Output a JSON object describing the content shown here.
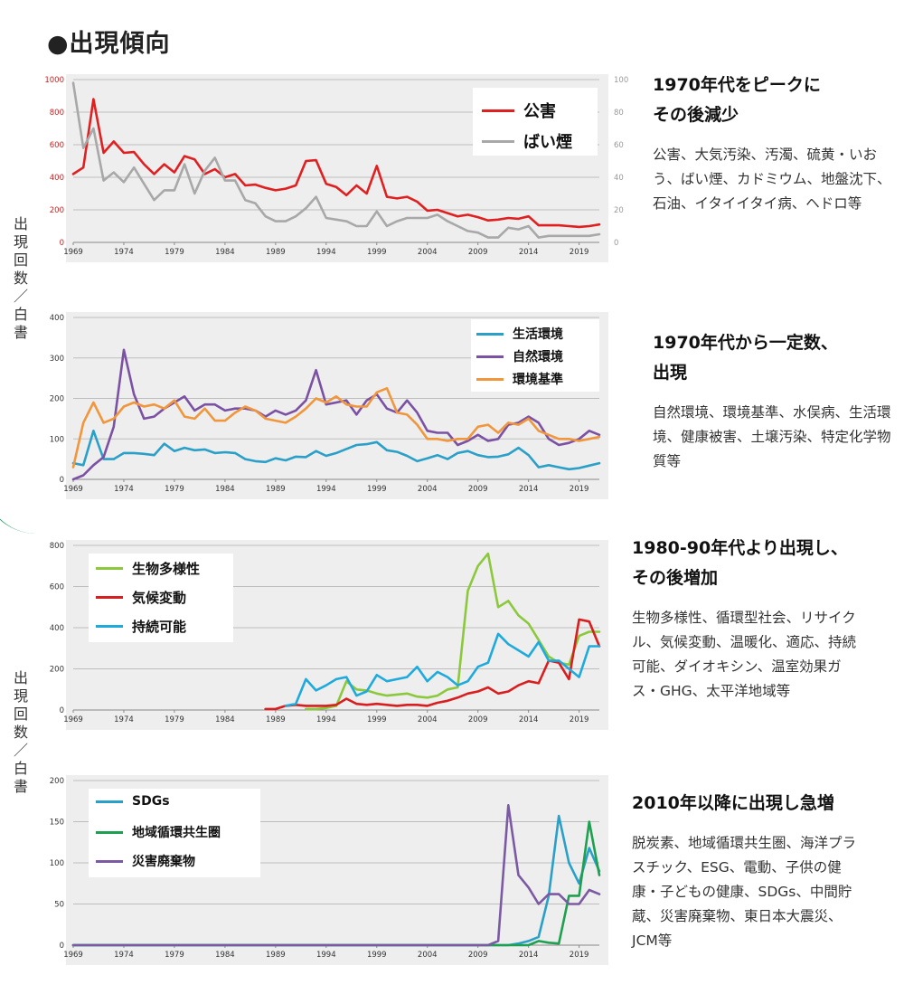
{
  "title": "●出現傾向",
  "y_axis_label": "出現回数／白書",
  "panels": [
    {
      "headline_1": "1970年代をピークに",
      "headline_2": "その後減少",
      "body": "公害、大気汚染、汚濁、硫黄・いおう、ばい煙、カドミウム、地盤沈下、石油、イタイイタイ病、ヘドロ等"
    },
    {
      "headline_1": "1970年代から一定数、",
      "headline_2": "出現",
      "body": "自然環境、環境基準、水俣病、生活環境、健康被害、土壌汚染、特定化学物質等"
    },
    {
      "headline_1": "1980-90年代より出現し、",
      "headline_2": "その後増加",
      "body": "生物多様性、循環型社会、リサイクル、気候変動、温暖化、適応、持続可能、ダイオキシン、温室効果ガス・GHG、太平洋地域等"
    },
    {
      "headline_1": "2010年以降に出現し急増",
      "headline_2": "",
      "body": "脱炭素、地域循環共生圏、海洋プラスチック、ESG、電動、子供の健康・子どもの健康、SDGs、中間貯蔵、災害廃棄物、東日本大震災、JCM等"
    }
  ],
  "chart_data": [
    {
      "type": "line",
      "x": [
        1969,
        1970,
        1971,
        1972,
        1973,
        1974,
        1975,
        1976,
        1977,
        1978,
        1979,
        1980,
        1981,
        1982,
        1983,
        1984,
        1985,
        1986,
        1987,
        1988,
        1989,
        1990,
        1991,
        1992,
        1993,
        1994,
        1995,
        1996,
        1997,
        1998,
        1999,
        2000,
        2001,
        2002,
        2003,
        2004,
        2005,
        2006,
        2007,
        2008,
        2009,
        2010,
        2011,
        2012,
        2013,
        2014,
        2015,
        2016,
        2017,
        2018,
        2019,
        2020,
        2021
      ],
      "x_ticks": [
        "1969",
        "1974",
        "1979",
        "1984",
        "1989",
        "1994",
        "1999",
        "2004",
        "2009",
        "2014",
        "2019"
      ],
      "ylim": [
        0,
        1000
      ],
      "y_ticks": [
        "0",
        "200",
        "400",
        "600",
        "800",
        "1000"
      ],
      "y2lim": [
        0,
        100
      ],
      "y2_ticks": [
        "0",
        "20",
        "40",
        "60",
        "80",
        "100"
      ],
      "series": [
        {
          "name": "公害",
          "color": "#e02020",
          "axis": "left",
          "values": [
            420,
            460,
            880,
            550,
            620,
            550,
            555,
            480,
            420,
            480,
            430,
            530,
            510,
            420,
            450,
            400,
            420,
            350,
            355,
            335,
            320,
            330,
            350,
            500,
            505,
            360,
            340,
            290,
            350,
            300,
            470,
            280,
            270,
            280,
            250,
            195,
            200,
            180,
            160,
            170,
            155,
            135,
            140,
            150,
            145,
            160,
            105,
            105,
            105,
            100,
            95,
            100,
            110
          ]
        },
        {
          "name": "ばい煙",
          "color": "#a8a8a8",
          "axis": "right",
          "values": [
            98,
            58,
            70,
            38,
            43,
            37,
            46,
            36,
            26,
            32,
            32,
            48,
            30,
            44,
            52,
            38,
            38,
            26,
            24,
            16,
            13,
            13,
            16,
            21,
            28,
            15,
            14,
            13,
            10,
            10,
            19,
            10,
            13,
            15,
            15,
            15,
            17,
            13,
            10,
            7,
            6,
            3,
            3,
            9,
            8,
            10,
            3,
            4,
            4,
            4,
            4,
            4,
            5
          ]
        }
      ]
    },
    {
      "type": "line",
      "x": [
        1969,
        1970,
        1971,
        1972,
        1973,
        1974,
        1975,
        1976,
        1977,
        1978,
        1979,
        1980,
        1981,
        1982,
        1983,
        1984,
        1985,
        1986,
        1987,
        1988,
        1989,
        1990,
        1991,
        1992,
        1993,
        1994,
        1995,
        1996,
        1997,
        1998,
        1999,
        2000,
        2001,
        2002,
        2003,
        2004,
        2005,
        2006,
        2007,
        2008,
        2009,
        2010,
        2011,
        2012,
        2013,
        2014,
        2015,
        2016,
        2017,
        2018,
        2019,
        2020,
        2021
      ],
      "x_ticks": [
        "1969",
        "1974",
        "1979",
        "1984",
        "1989",
        "1994",
        "1999",
        "2004",
        "2009",
        "2014",
        "2019"
      ],
      "ylim": [
        0,
        400
      ],
      "y_ticks": [
        "0",
        "100",
        "200",
        "300",
        "400"
      ],
      "series": [
        {
          "name": "生活環境",
          "color": "#2aa0c8",
          "values": [
            40,
            35,
            120,
            50,
            50,
            65,
            65,
            63,
            60,
            88,
            70,
            78,
            72,
            74,
            65,
            67,
            65,
            50,
            45,
            43,
            52,
            47,
            56,
            55,
            70,
            58,
            65,
            75,
            85,
            87,
            92,
            72,
            68,
            58,
            45,
            52,
            60,
            50,
            65,
            70,
            60,
            55,
            56,
            62,
            78,
            60,
            30,
            35,
            30,
            25,
            28,
            34,
            40
          ]
        },
        {
          "name": "自然環境",
          "color": "#7b51a3",
          "values": [
            0,
            10,
            35,
            55,
            130,
            320,
            210,
            150,
            155,
            175,
            190,
            205,
            170,
            185,
            185,
            170,
            175,
            175,
            170,
            155,
            170,
            160,
            170,
            195,
            270,
            185,
            190,
            195,
            160,
            195,
            210,
            175,
            165,
            195,
            165,
            120,
            115,
            115,
            85,
            95,
            110,
            95,
            100,
            135,
            140,
            155,
            140,
            100,
            85,
            90,
            100,
            120,
            110
          ]
        },
        {
          "name": "環境基準",
          "color": "#f0963c",
          "values": [
            30,
            140,
            190,
            140,
            150,
            180,
            190,
            180,
            185,
            175,
            195,
            155,
            150,
            175,
            145,
            145,
            165,
            180,
            170,
            150,
            145,
            140,
            155,
            175,
            200,
            190,
            205,
            185,
            180,
            180,
            215,
            225,
            165,
            160,
            135,
            100,
            100,
            95,
            100,
            100,
            130,
            135,
            115,
            140,
            135,
            150,
            120,
            110,
            100,
            100,
            95,
            100,
            105
          ]
        }
      ]
    },
    {
      "type": "line",
      "x": [
        1988,
        1989,
        1990,
        1991,
        1992,
        1993,
        1994,
        1995,
        1996,
        1997,
        1998,
        1999,
        2000,
        2001,
        2002,
        2003,
        2004,
        2005,
        2006,
        2007,
        2008,
        2009,
        2010,
        2011,
        2012,
        2013,
        2014,
        2015,
        2016,
        2017,
        2018,
        2019,
        2020,
        2021
      ],
      "x_ticks": [
        "1969",
        "1974",
        "1979",
        "1984",
        "1989",
        "1994",
        "1999",
        "2004",
        "2009",
        "2014",
        "2019"
      ],
      "x_range": [
        1969,
        2021
      ],
      "ylim": [
        0,
        800
      ],
      "y_ticks": [
        "0",
        "200",
        "400",
        "600",
        "800"
      ],
      "series": [
        {
          "name": "生物多様性",
          "color": "#8cc83c",
          "values": [
            null,
            null,
            null,
            null,
            5,
            5,
            10,
            20,
            140,
            100,
            95,
            80,
            70,
            75,
            80,
            65,
            60,
            70,
            100,
            110,
            580,
            700,
            760,
            500,
            530,
            460,
            420,
            340,
            260,
            230,
            220,
            360,
            380,
            380
          ]
        },
        {
          "name": "気候変動",
          "color": "#d81e1e",
          "values": [
            5,
            5,
            20,
            25,
            20,
            20,
            20,
            25,
            55,
            30,
            25,
            30,
            25,
            20,
            25,
            25,
            20,
            35,
            45,
            60,
            80,
            90,
            110,
            80,
            90,
            120,
            140,
            130,
            240,
            230,
            150,
            440,
            430,
            310
          ]
        },
        {
          "name": "持続可能",
          "color": "#1eaadc",
          "values": [
            null,
            null,
            20,
            30,
            150,
            95,
            120,
            150,
            160,
            70,
            90,
            170,
            140,
            150,
            160,
            210,
            140,
            185,
            160,
            120,
            140,
            210,
            230,
            370,
            320,
            290,
            260,
            330,
            240,
            240,
            200,
            160,
            310,
            310
          ]
        }
      ]
    },
    {
      "type": "line",
      "x": [
        1969,
        1970,
        1971,
        1972,
        1973,
        1974,
        1975,
        1976,
        1977,
        1978,
        1979,
        1980,
        1981,
        1982,
        1983,
        1984,
        1985,
        1986,
        1987,
        1988,
        1989,
        1990,
        1991,
        1992,
        1993,
        1994,
        1995,
        1996,
        1997,
        1998,
        1999,
        2000,
        2001,
        2002,
        2003,
        2004,
        2005,
        2006,
        2007,
        2008,
        2009,
        2010,
        2011,
        2012,
        2013,
        2014,
        2015,
        2016,
        2017,
        2018,
        2019,
        2020,
        2021
      ],
      "x_ticks": [
        "1969",
        "1974",
        "1979",
        "1984",
        "1989",
        "1994",
        "1999",
        "2004",
        "2009",
        "2014",
        "2019"
      ],
      "ylim": [
        0,
        200
      ],
      "y_ticks": [
        "0",
        "50",
        "100",
        "150",
        "200"
      ],
      "series": [
        {
          "name": "SDGs",
          "color": "#2aa0c8",
          "values": [
            0,
            0,
            0,
            0,
            0,
            0,
            0,
            0,
            0,
            0,
            0,
            0,
            0,
            0,
            0,
            0,
            0,
            0,
            0,
            0,
            0,
            0,
            0,
            0,
            0,
            0,
            0,
            0,
            0,
            0,
            0,
            0,
            0,
            0,
            0,
            0,
            0,
            0,
            0,
            0,
            0,
            0,
            0,
            0,
            2,
            5,
            10,
            60,
            157,
            100,
            75,
            118,
            90
          ]
        },
        {
          "name": "地域循環共生圏",
          "color": "#1ea050",
          "values": [
            0,
            0,
            0,
            0,
            0,
            0,
            0,
            0,
            0,
            0,
            0,
            0,
            0,
            0,
            0,
            0,
            0,
            0,
            0,
            0,
            0,
            0,
            0,
            0,
            0,
            0,
            0,
            0,
            0,
            0,
            0,
            0,
            0,
            0,
            0,
            0,
            0,
            0,
            0,
            0,
            0,
            0,
            0,
            0,
            0,
            0,
            5,
            3,
            2,
            60,
            60,
            150,
            85
          ]
        },
        {
          "name": "災害廃棄物",
          "color": "#7b5aa3",
          "values": [
            0,
            0,
            0,
            0,
            0,
            0,
            0,
            0,
            0,
            0,
            0,
            0,
            0,
            0,
            0,
            0,
            0,
            0,
            0,
            0,
            0,
            0,
            0,
            0,
            0,
            0,
            0,
            0,
            0,
            0,
            0,
            0,
            0,
            0,
            0,
            0,
            0,
            0,
            0,
            0,
            0,
            0,
            5,
            170,
            85,
            70,
            50,
            62,
            62,
            50,
            50,
            67,
            62
          ]
        }
      ]
    }
  ]
}
